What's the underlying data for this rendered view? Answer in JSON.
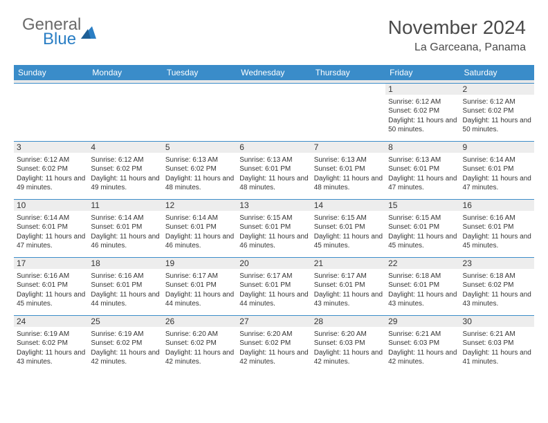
{
  "logo": {
    "text1": "General",
    "text2": "Blue",
    "shape_color": "#2a7ec4"
  },
  "title": "November 2024",
  "location": "La Garceana, Panama",
  "header_bg": "#3a8cc9",
  "day_headers": [
    "Sunday",
    "Monday",
    "Tuesday",
    "Wednesday",
    "Thursday",
    "Friday",
    "Saturday"
  ],
  "weeks": [
    [
      {
        "n": "",
        "sr": "",
        "ss": "",
        "dl": ""
      },
      {
        "n": "",
        "sr": "",
        "ss": "",
        "dl": ""
      },
      {
        "n": "",
        "sr": "",
        "ss": "",
        "dl": ""
      },
      {
        "n": "",
        "sr": "",
        "ss": "",
        "dl": ""
      },
      {
        "n": "",
        "sr": "",
        "ss": "",
        "dl": ""
      },
      {
        "n": "1",
        "sr": "Sunrise: 6:12 AM",
        "ss": "Sunset: 6:02 PM",
        "dl": "Daylight: 11 hours and 50 minutes."
      },
      {
        "n": "2",
        "sr": "Sunrise: 6:12 AM",
        "ss": "Sunset: 6:02 PM",
        "dl": "Daylight: 11 hours and 50 minutes."
      }
    ],
    [
      {
        "n": "3",
        "sr": "Sunrise: 6:12 AM",
        "ss": "Sunset: 6:02 PM",
        "dl": "Daylight: 11 hours and 49 minutes."
      },
      {
        "n": "4",
        "sr": "Sunrise: 6:12 AM",
        "ss": "Sunset: 6:02 PM",
        "dl": "Daylight: 11 hours and 49 minutes."
      },
      {
        "n": "5",
        "sr": "Sunrise: 6:13 AM",
        "ss": "Sunset: 6:02 PM",
        "dl": "Daylight: 11 hours and 48 minutes."
      },
      {
        "n": "6",
        "sr": "Sunrise: 6:13 AM",
        "ss": "Sunset: 6:01 PM",
        "dl": "Daylight: 11 hours and 48 minutes."
      },
      {
        "n": "7",
        "sr": "Sunrise: 6:13 AM",
        "ss": "Sunset: 6:01 PM",
        "dl": "Daylight: 11 hours and 48 minutes."
      },
      {
        "n": "8",
        "sr": "Sunrise: 6:13 AM",
        "ss": "Sunset: 6:01 PM",
        "dl": "Daylight: 11 hours and 47 minutes."
      },
      {
        "n": "9",
        "sr": "Sunrise: 6:14 AM",
        "ss": "Sunset: 6:01 PM",
        "dl": "Daylight: 11 hours and 47 minutes."
      }
    ],
    [
      {
        "n": "10",
        "sr": "Sunrise: 6:14 AM",
        "ss": "Sunset: 6:01 PM",
        "dl": "Daylight: 11 hours and 47 minutes."
      },
      {
        "n": "11",
        "sr": "Sunrise: 6:14 AM",
        "ss": "Sunset: 6:01 PM",
        "dl": "Daylight: 11 hours and 46 minutes."
      },
      {
        "n": "12",
        "sr": "Sunrise: 6:14 AM",
        "ss": "Sunset: 6:01 PM",
        "dl": "Daylight: 11 hours and 46 minutes."
      },
      {
        "n": "13",
        "sr": "Sunrise: 6:15 AM",
        "ss": "Sunset: 6:01 PM",
        "dl": "Daylight: 11 hours and 46 minutes."
      },
      {
        "n": "14",
        "sr": "Sunrise: 6:15 AM",
        "ss": "Sunset: 6:01 PM",
        "dl": "Daylight: 11 hours and 45 minutes."
      },
      {
        "n": "15",
        "sr": "Sunrise: 6:15 AM",
        "ss": "Sunset: 6:01 PM",
        "dl": "Daylight: 11 hours and 45 minutes."
      },
      {
        "n": "16",
        "sr": "Sunrise: 6:16 AM",
        "ss": "Sunset: 6:01 PM",
        "dl": "Daylight: 11 hours and 45 minutes."
      }
    ],
    [
      {
        "n": "17",
        "sr": "Sunrise: 6:16 AM",
        "ss": "Sunset: 6:01 PM",
        "dl": "Daylight: 11 hours and 45 minutes."
      },
      {
        "n": "18",
        "sr": "Sunrise: 6:16 AM",
        "ss": "Sunset: 6:01 PM",
        "dl": "Daylight: 11 hours and 44 minutes."
      },
      {
        "n": "19",
        "sr": "Sunrise: 6:17 AM",
        "ss": "Sunset: 6:01 PM",
        "dl": "Daylight: 11 hours and 44 minutes."
      },
      {
        "n": "20",
        "sr": "Sunrise: 6:17 AM",
        "ss": "Sunset: 6:01 PM",
        "dl": "Daylight: 11 hours and 44 minutes."
      },
      {
        "n": "21",
        "sr": "Sunrise: 6:17 AM",
        "ss": "Sunset: 6:01 PM",
        "dl": "Daylight: 11 hours and 43 minutes."
      },
      {
        "n": "22",
        "sr": "Sunrise: 6:18 AM",
        "ss": "Sunset: 6:01 PM",
        "dl": "Daylight: 11 hours and 43 minutes."
      },
      {
        "n": "23",
        "sr": "Sunrise: 6:18 AM",
        "ss": "Sunset: 6:02 PM",
        "dl": "Daylight: 11 hours and 43 minutes."
      }
    ],
    [
      {
        "n": "24",
        "sr": "Sunrise: 6:19 AM",
        "ss": "Sunset: 6:02 PM",
        "dl": "Daylight: 11 hours and 43 minutes."
      },
      {
        "n": "25",
        "sr": "Sunrise: 6:19 AM",
        "ss": "Sunset: 6:02 PM",
        "dl": "Daylight: 11 hours and 42 minutes."
      },
      {
        "n": "26",
        "sr": "Sunrise: 6:20 AM",
        "ss": "Sunset: 6:02 PM",
        "dl": "Daylight: 11 hours and 42 minutes."
      },
      {
        "n": "27",
        "sr": "Sunrise: 6:20 AM",
        "ss": "Sunset: 6:02 PM",
        "dl": "Daylight: 11 hours and 42 minutes."
      },
      {
        "n": "28",
        "sr": "Sunrise: 6:20 AM",
        "ss": "Sunset: 6:03 PM",
        "dl": "Daylight: 11 hours and 42 minutes."
      },
      {
        "n": "29",
        "sr": "Sunrise: 6:21 AM",
        "ss": "Sunset: 6:03 PM",
        "dl": "Daylight: 11 hours and 42 minutes."
      },
      {
        "n": "30",
        "sr": "Sunrise: 6:21 AM",
        "ss": "Sunset: 6:03 PM",
        "dl": "Daylight: 11 hours and 41 minutes."
      }
    ]
  ]
}
